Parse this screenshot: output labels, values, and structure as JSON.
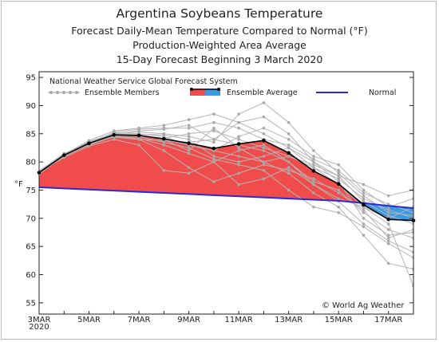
{
  "chart_data": {
    "type": "line",
    "title": "Argentina Soybeans Temperature",
    "subtitle_lines": [
      "Forecast Daily-Mean Temperature Compared to Normal (°F)",
      "Production-Weighted Area Average",
      "15-Day Forecast Beginning 3 March 2020"
    ],
    "ylabel": "°F",
    "xlabel": "",
    "ylim": [
      53,
      96
    ],
    "yticks": [
      55,
      60,
      65,
      70,
      75,
      80,
      85,
      90,
      95
    ],
    "x_tick_labels": [
      "3MAR",
      "5MAR",
      "7MAR",
      "9MAR",
      "11MAR",
      "13MAR",
      "15MAR",
      "17MAR"
    ],
    "x_year_label": "2020",
    "x": [
      "3MAR",
      "4MAR",
      "5MAR",
      "6MAR",
      "7MAR",
      "8MAR",
      "9MAR",
      "10MAR",
      "11MAR",
      "12MAR",
      "13MAR",
      "14MAR",
      "15MAR",
      "16MAR",
      "17MAR",
      "18MAR"
    ],
    "series": [
      {
        "name": "Ensemble Average",
        "color": "#000000",
        "values": [
          78.1,
          81.2,
          83.3,
          84.8,
          84.7,
          84.1,
          83.3,
          82.4,
          83.2,
          83.8,
          81.6,
          78.4,
          76.1,
          72.4,
          69.8,
          69.6
        ]
      },
      {
        "name": "Normal",
        "color": "#2b2bd6",
        "values": [
          75.5,
          75.3,
          75.1,
          74.9,
          74.7,
          74.5,
          74.3,
          74.1,
          73.9,
          73.7,
          73.5,
          73.3,
          73.1,
          72.7,
          72.2,
          71.8
        ]
      }
    ],
    "ensemble_members": {
      "name": "Ensemble Members",
      "color": "#b5b5b5",
      "members": [
        [
          78.0,
          81.0,
          83.5,
          85.0,
          85.5,
          85.8,
          86.5,
          84.0,
          87.0,
          88.0,
          85.0,
          80.0,
          77.5,
          73.0,
          70.5,
          69.0
        ],
        [
          78.4,
          81.5,
          83.0,
          84.5,
          84.2,
          83.0,
          81.5,
          80.0,
          82.0,
          83.0,
          80.0,
          76.5,
          75.0,
          71.0,
          68.0,
          66.5
        ],
        [
          77.8,
          81.3,
          83.8,
          85.5,
          86.0,
          86.5,
          87.5,
          88.5,
          87.0,
          85.0,
          82.5,
          79.0,
          76.0,
          72.0,
          70.0,
          72.0
        ],
        [
          78.2,
          80.8,
          82.8,
          84.0,
          83.0,
          78.5,
          78.0,
          80.0,
          76.0,
          77.0,
          79.0,
          76.0,
          73.0,
          69.0,
          66.0,
          64.0
        ],
        [
          78.0,
          81.2,
          83.4,
          85.2,
          85.0,
          84.5,
          83.0,
          82.0,
          84.5,
          86.0,
          84.0,
          81.0,
          79.5,
          75.0,
          72.0,
          73.5
        ],
        [
          78.1,
          81.1,
          83.2,
          84.6,
          84.8,
          84.0,
          82.0,
          86.0,
          82.5,
          80.0,
          78.0,
          74.5,
          72.0,
          67.0,
          62.0,
          61.0
        ],
        [
          78.3,
          81.4,
          83.6,
          85.1,
          85.3,
          85.0,
          84.5,
          83.5,
          88.5,
          90.5,
          87.0,
          82.0,
          78.0,
          74.0,
          71.0,
          70.5
        ],
        [
          77.9,
          81.0,
          83.1,
          84.7,
          84.5,
          83.5,
          82.5,
          80.5,
          79.5,
          78.5,
          75.0,
          72.0,
          71.0,
          68.5,
          65.5,
          63.0
        ],
        [
          78.2,
          81.3,
          83.3,
          84.9,
          84.6,
          84.2,
          85.0,
          85.5,
          84.0,
          82.5,
          81.0,
          79.5,
          77.5,
          76.0,
          74.0,
          75.0
        ],
        [
          78.0,
          81.1,
          83.2,
          84.8,
          84.9,
          84.8,
          84.0,
          81.0,
          80.0,
          81.0,
          82.5,
          80.0,
          76.5,
          70.0,
          67.0,
          67.5
        ],
        [
          78.1,
          81.2,
          83.5,
          84.4,
          84.0,
          82.0,
          79.0,
          76.5,
          78.0,
          79.5,
          78.5,
          77.0,
          74.5,
          71.5,
          66.5,
          68.0
        ],
        [
          78.3,
          81.2,
          83.0,
          85.3,
          85.8,
          86.0,
          86.0,
          87.0,
          86.0,
          84.0,
          83.0,
          80.5,
          78.5,
          74.5,
          72.5,
          71.0
        ],
        [
          78.0,
          81.0,
          83.4,
          84.5,
          84.0,
          83.8,
          83.5,
          84.0,
          83.0,
          82.0,
          80.0,
          76.0,
          73.5,
          72.0,
          69.0,
          58.0
        ],
        [
          78.2,
          81.4,
          83.3,
          85.0,
          84.8,
          84.0,
          83.0,
          82.0,
          81.0,
          80.0,
          81.0,
          79.0,
          77.0,
          73.5,
          71.5,
          70.0
        ]
      ]
    },
    "legend": [
      "Ensemble Members",
      "Ensemble Average",
      "Normal"
    ],
    "legend_placement": "top",
    "legend_title": "National Weather Service Global Forecast System",
    "fill_above_normal_color": "#f04c4c",
    "fill_below_normal_color": "#3a9ae6",
    "grid": false,
    "credit": "© World Ag Weather"
  }
}
